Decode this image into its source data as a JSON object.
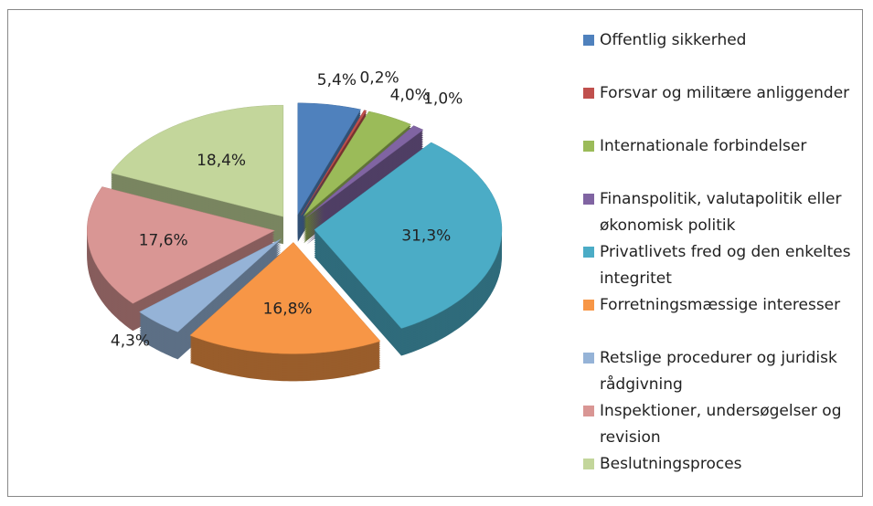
{
  "chart_data": {
    "type": "pie",
    "categories": [
      "Offentlig sikkerhed",
      "Forsvar og militære anliggender",
      "Internationale forbindelser",
      "Finanspolitik, valutapolitik eller økonomisk politik",
      "Privatlivets fred og den enkeltes integritet",
      "Forretningsmæssige interesser",
      "Retslige procedurer og juridisk rådgivning",
      "Inspektioner, undersøgelser og revision",
      "Beslutningsproces"
    ],
    "values": [
      5.4,
      0.2,
      4.0,
      1.0,
      31.3,
      16.8,
      4.3,
      17.6,
      18.4
    ],
    "value_labels": [
      "5,4%",
      "0,2%",
      "4,0%",
      "1,0%",
      "31,3%",
      "16,8%",
      "4,3%",
      "17,6%",
      "18,4%"
    ],
    "colors": [
      "#4f81bd",
      "#c0504d",
      "#9bbb59",
      "#8064a2",
      "#4bacc6",
      "#f79646",
      "#95b3d7",
      "#d99694",
      "#c3d69b"
    ],
    "legend": "right"
  }
}
